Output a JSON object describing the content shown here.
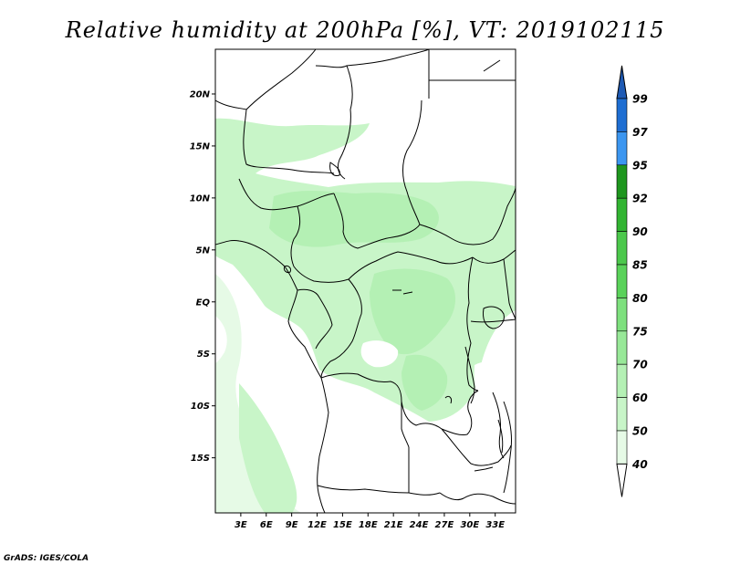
{
  "title": "Relative humidity at 200hPa [%], VT: 2019102115",
  "credit": "GrADS: IGES/COLA",
  "map": {
    "lon_labels": [
      "3E",
      "6E",
      "9E",
      "12E",
      "15E",
      "18E",
      "21E",
      "24E",
      "27E",
      "30E",
      "33E"
    ],
    "lon_values": [
      3,
      6,
      9,
      12,
      15,
      18,
      21,
      24,
      27,
      30,
      33
    ],
    "lat_labels": [
      "20N",
      "15N",
      "10N",
      "5N",
      "EQ",
      "5S",
      "10S",
      "15S"
    ],
    "lat_values": [
      20,
      15,
      10,
      5,
      0,
      -5,
      -10,
      -15
    ]
  },
  "colorbar": {
    "labels": [
      "99",
      "97",
      "95",
      "92",
      "90",
      "85",
      "80",
      "75",
      "70",
      "60",
      "50",
      "40"
    ],
    "colors": [
      "#1e6ed2",
      "#3c96f0",
      "#1e961e",
      "#32b432",
      "#4cc84c",
      "#5ad25a",
      "#7ee07e",
      "#98e898",
      "#b4f0b4",
      "#c8f5c8",
      "#e6fae6",
      "#ffffff"
    ],
    "top_cap_color": "#1e5ab4",
    "bottom_cap_color": "#ffffff"
  }
}
